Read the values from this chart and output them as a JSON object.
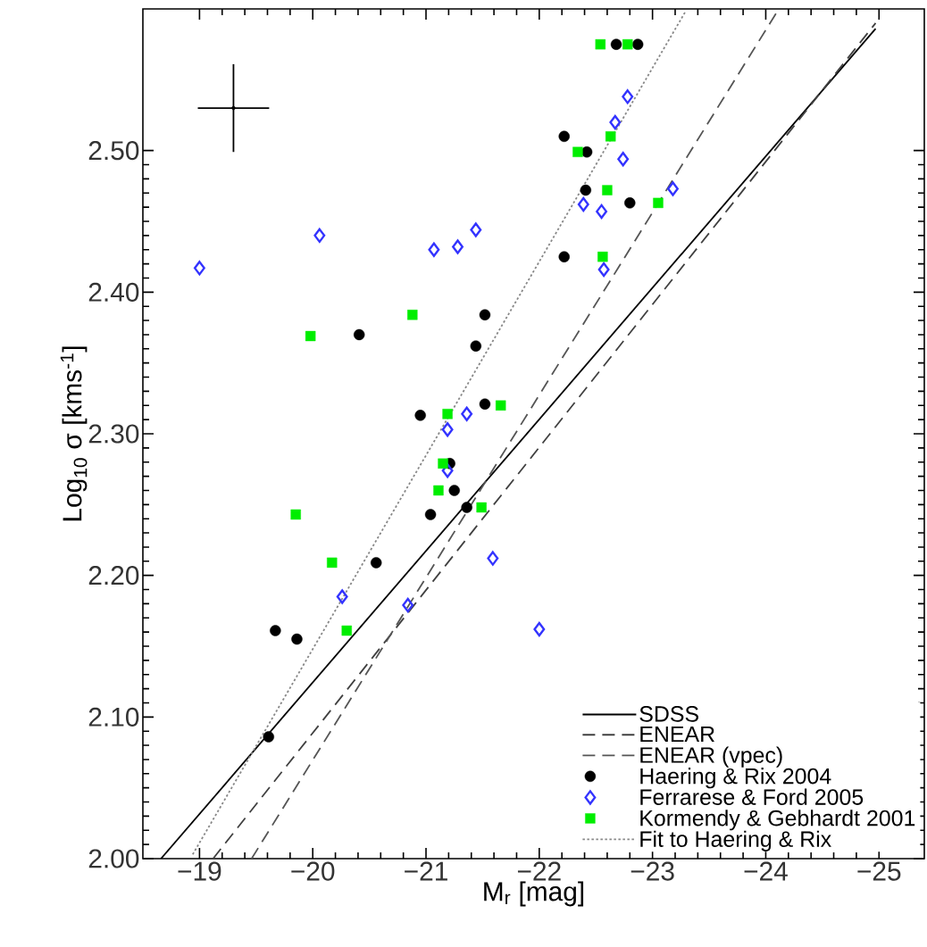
{
  "chart_data": {
    "type": "scatter",
    "xlabel": "M$_{r}$ [mag]",
    "ylabel": "Log$_{10}$ σ [kms$^{-1}$]",
    "xlim": [
      -18.5,
      -25.4
    ],
    "ylim": [
      2.0,
      2.6
    ],
    "xticks": [
      {
        "value": -19,
        "label": "−19"
      },
      {
        "value": -20,
        "label": "−20"
      },
      {
        "value": -21,
        "label": "−21"
      },
      {
        "value": -22,
        "label": "−22"
      },
      {
        "value": -23,
        "label": "−23"
      },
      {
        "value": -24,
        "label": "−24"
      },
      {
        "value": -25,
        "label": "−25"
      }
    ],
    "yticks": [
      {
        "value": 2.0,
        "label": "2.00"
      },
      {
        "value": 2.1,
        "label": "2.10"
      },
      {
        "value": 2.2,
        "label": "2.20"
      },
      {
        "value": 2.3,
        "label": "2.30"
      },
      {
        "value": 2.4,
        "label": "2.40"
      },
      {
        "value": 2.5,
        "label": "2.50"
      }
    ],
    "legend": "bottom right",
    "series": [
      {
        "name": "SDSS",
        "type": "line",
        "line_style": "solid",
        "color": "#000000",
        "x": [
          -18.66,
          -24.97
        ],
        "values": [
          2.0,
          2.586
        ]
      },
      {
        "name": "ENEAR",
        "type": "line",
        "line_style": "dashed",
        "color": "#404040",
        "x": [
          -19.12,
          -24.97
        ],
        "values": [
          2.0,
          2.59
        ]
      },
      {
        "name": "ENEAR (vpec)",
        "type": "line",
        "line_style": "dashed",
        "color": "#555555",
        "x": [
          -19.46,
          -24.1
        ],
        "values": [
          2.0,
          2.598
        ]
      },
      {
        "name": "Haering & Rix 2004",
        "marker": "circle",
        "color": "#000000",
        "x": [
          -21.52,
          -20.41,
          -21.44,
          -21.52,
          -20.95,
          -22.68,
          -22.87,
          -22.22,
          -22.42,
          -22.41,
          -22.8,
          -22.22,
          -21.21,
          -21.25,
          -21.36,
          -21.04,
          -20.56,
          -19.67,
          -19.86,
          -19.61
        ],
        "values": [
          2.384,
          2.37,
          2.362,
          2.321,
          2.313,
          2.575,
          2.575,
          2.51,
          2.499,
          2.472,
          2.463,
          2.425,
          2.279,
          2.26,
          2.248,
          2.243,
          2.209,
          2.161,
          2.155,
          2.086
        ]
      },
      {
        "name": "Ferrarese & Ford 2005",
        "marker": "diamond",
        "color": "#3333ff",
        "x": [
          -19.0,
          -20.06,
          -21.07,
          -21.28,
          -21.44,
          -21.36,
          -21.19,
          -22.78,
          -22.67,
          -22.74,
          -23.18,
          -22.39,
          -22.55,
          -22.57,
          -21.19,
          -21.59,
          -20.26,
          -20.84,
          -22.0
        ],
        "values": [
          2.417,
          2.44,
          2.43,
          2.432,
          2.444,
          2.314,
          2.303,
          2.538,
          2.52,
          2.494,
          2.473,
          2.462,
          2.457,
          2.416,
          2.274,
          2.212,
          2.185,
          2.179,
          2.162
        ]
      },
      {
        "name": "Kormendy & Gebhardt 2001",
        "marker": "square",
        "color": "#00ee00",
        "x": [
          -19.98,
          -20.88,
          -21.19,
          -21.66,
          -22.54,
          -22.78,
          -22.63,
          -22.34,
          -22.6,
          -23.05,
          -22.56,
          -21.15,
          -21.11,
          -21.49,
          -19.85,
          -20.17,
          -20.3
        ],
        "values": [
          2.369,
          2.384,
          2.314,
          2.32,
          2.575,
          2.575,
          2.51,
          2.499,
          2.472,
          2.463,
          2.425,
          2.279,
          2.26,
          2.248,
          2.243,
          2.209,
          2.161
        ]
      },
      {
        "name": "Fit to Haering & Rix",
        "type": "line",
        "line_style": "dotted",
        "color": "#888888",
        "x": [
          -18.94,
          -23.29
        ],
        "values": [
          2.003,
          2.598
        ]
      },
      {
        "marker": "none",
        "color": "#000000",
        "x": [
          -19.3
        ],
        "values": [
          2.53
        ],
        "errors": [
          0.031
        ],
        "xerrors": [
          0.315
        ]
      }
    ]
  }
}
